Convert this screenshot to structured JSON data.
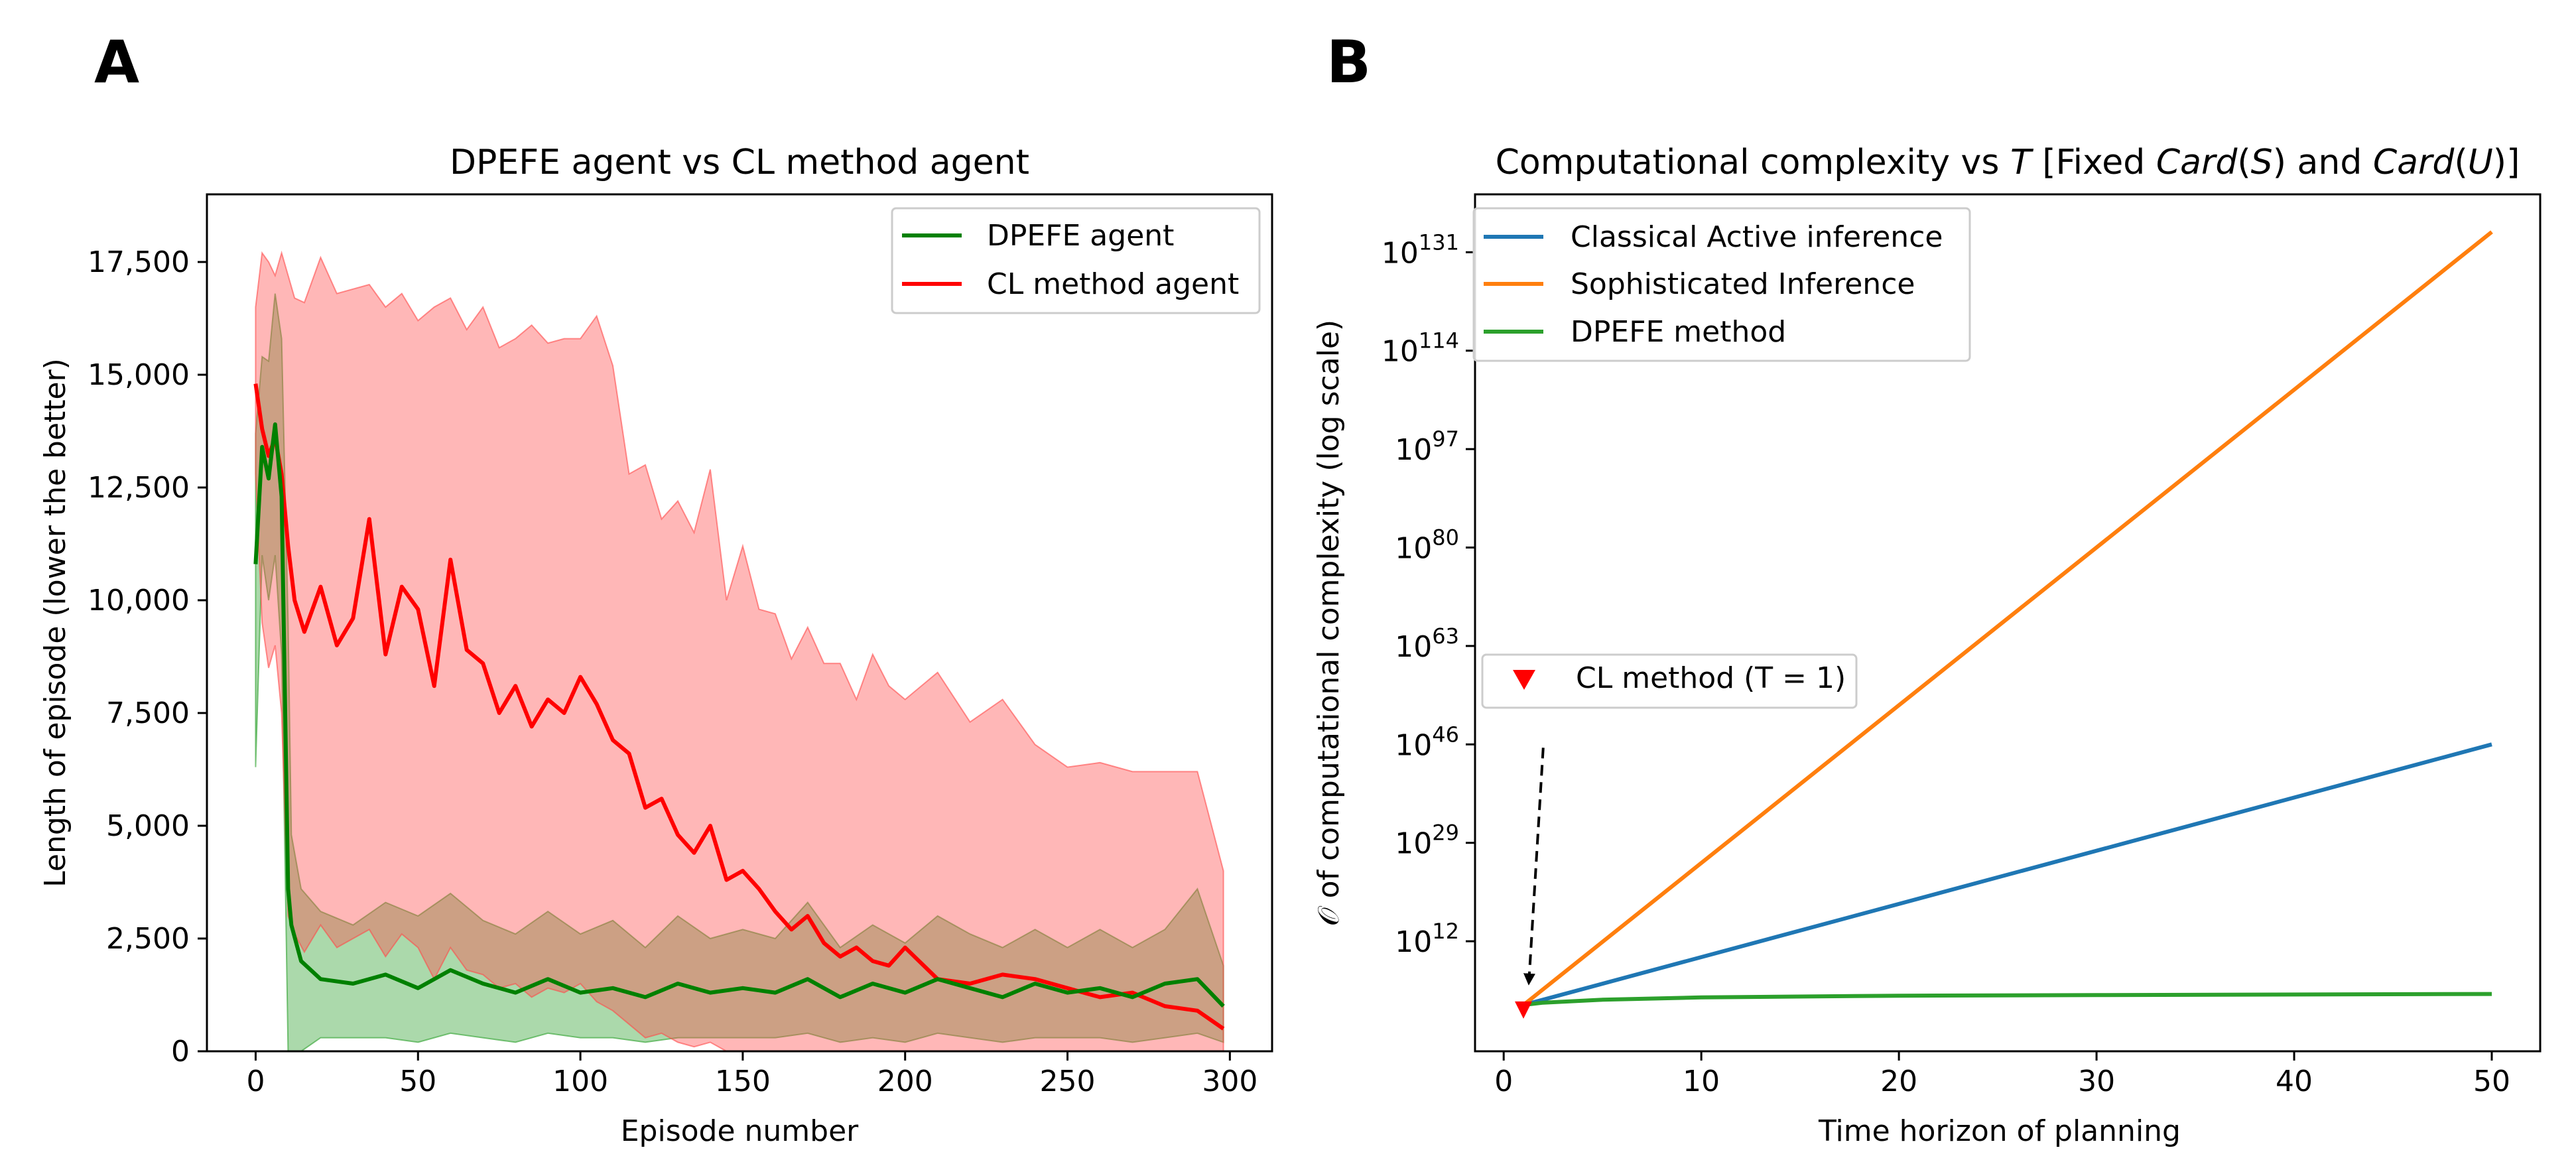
{
  "panel_labels": {
    "a": "A",
    "b": "B"
  },
  "chart_data": [
    {
      "type": "line",
      "panel": "A",
      "title": "DPEFE agent vs CL method agent",
      "xlabel": "Episode number",
      "ylabel": "Length of episode (lower the better)",
      "xlim": [
        -15,
        313
      ],
      "ylim": [
        0,
        19000
      ],
      "xticks": [
        0,
        50,
        100,
        150,
        200,
        250,
        300
      ],
      "xtick_labels": [
        "0",
        "50",
        "100",
        "150",
        "200",
        "250",
        "300"
      ],
      "yticks": [
        0,
        2500,
        5000,
        7500,
        10000,
        12500,
        15000,
        17500
      ],
      "ytick_labels": [
        "0",
        "2,500",
        "5,000",
        "7,500",
        "10,000",
        "12,500",
        "15,000",
        "17,500"
      ],
      "legend_position": "upper right",
      "series": [
        {
          "name": "DPEFE agent",
          "color": "#008000",
          "band_color": "#2ca02c",
          "x": [
            0,
            2,
            4,
            6,
            8,
            10,
            11,
            14,
            20,
            30,
            40,
            50,
            60,
            70,
            80,
            90,
            100,
            110,
            120,
            130,
            140,
            150,
            160,
            170,
            180,
            190,
            200,
            210,
            220,
            230,
            240,
            250,
            260,
            270,
            280,
            290,
            298
          ],
          "values": [
            10800,
            13400,
            12700,
            13900,
            12300,
            3600,
            2800,
            2000,
            1600,
            1500,
            1700,
            1400,
            1800,
            1500,
            1300,
            1600,
            1300,
            1400,
            1200,
            1500,
            1300,
            1400,
            1300,
            1600,
            1200,
            1500,
            1300,
            1600,
            1400,
            1200,
            1500,
            1300,
            1400,
            1200,
            1500,
            1600,
            1000
          ],
          "upper": [
            13700,
            15400,
            15300,
            16800,
            15800,
            9500,
            4800,
            3600,
            3100,
            2800,
            3300,
            3000,
            3500,
            2900,
            2600,
            3100,
            2600,
            2900,
            2300,
            3000,
            2500,
            2700,
            2500,
            3300,
            2300,
            2800,
            2400,
            3000,
            2600,
            2300,
            2700,
            2300,
            2700,
            2300,
            2700,
            3600,
            1900
          ],
          "lower": [
            6300,
            11000,
            10000,
            11000,
            8800,
            0,
            0,
            0,
            300,
            300,
            300,
            200,
            400,
            300,
            200,
            400,
            300,
            300,
            200,
            300,
            300,
            300,
            300,
            400,
            200,
            300,
            200,
            400,
            300,
            200,
            300,
            300,
            300,
            200,
            300,
            400,
            200
          ]
        },
        {
          "name": "CL method agent",
          "color": "#ff0000",
          "band_color": "#ff4a4a",
          "x": [
            0,
            2,
            4,
            6,
            8,
            10,
            12,
            15,
            20,
            25,
            30,
            35,
            40,
            45,
            50,
            55,
            60,
            65,
            70,
            75,
            80,
            85,
            90,
            95,
            100,
            105,
            110,
            115,
            120,
            125,
            130,
            135,
            140,
            145,
            150,
            155,
            160,
            165,
            170,
            175,
            180,
            185,
            190,
            195,
            200,
            210,
            220,
            230,
            240,
            250,
            260,
            270,
            280,
            290,
            298
          ],
          "values": [
            14800,
            13800,
            13200,
            13600,
            12800,
            11200,
            10000,
            9300,
            10300,
            9000,
            9600,
            11800,
            8800,
            10300,
            9800,
            8100,
            10900,
            8900,
            8600,
            7500,
            8100,
            7200,
            7800,
            7500,
            8300,
            7700,
            6900,
            6600,
            5400,
            5600,
            4800,
            4400,
            5000,
            3800,
            4000,
            3600,
            3100,
            2700,
            3000,
            2400,
            2100,
            2300,
            2000,
            1900,
            2300,
            1600,
            1500,
            1700,
            1600,
            1400,
            1200,
            1300,
            1000,
            900,
            500
          ],
          "upper": [
            16500,
            17700,
            17500,
            17200,
            17700,
            17200,
            16700,
            16600,
            17600,
            16800,
            16900,
            17000,
            16500,
            16800,
            16200,
            16500,
            16700,
            16000,
            16500,
            15600,
            15800,
            16100,
            15700,
            15800,
            15800,
            16300,
            15200,
            12800,
            13000,
            11800,
            12200,
            11500,
            12900,
            10000,
            11200,
            9800,
            9700,
            8700,
            9400,
            8600,
            8600,
            7800,
            8800,
            8100,
            7800,
            8400,
            7300,
            7800,
            6800,
            6300,
            6400,
            6200,
            6200,
            6200,
            4000
          ],
          "lower": [
            12800,
            9500,
            8500,
            9000,
            7500,
            3000,
            2600,
            2200,
            2800,
            2300,
            2500,
            2700,
            2100,
            2600,
            2300,
            1600,
            2300,
            1800,
            1700,
            1400,
            1500,
            1200,
            1400,
            1300,
            1500,
            1100,
            900,
            600,
            300,
            400,
            200,
            100,
            200,
            0,
            0,
            0,
            0,
            0,
            0,
            0,
            0,
            0,
            0,
            0,
            0,
            0,
            0,
            0,
            0,
            0,
            0,
            0,
            0,
            0,
            0
          ]
        }
      ]
    },
    {
      "type": "line",
      "panel": "B",
      "title": "Computational complexity vs T [Fixed Card(S) and Card(U)]",
      "title_parts": {
        "a": "Computational complexity vs ",
        "t": "T",
        "b": " [Fixed ",
        "cs": "Card",
        "c": "(",
        "s": "S",
        "d": ") and ",
        "cu": "Card",
        "e": "(",
        "u": "U",
        "f": ")]"
      },
      "xlabel": "Time horizon of planning",
      "ylabel": "𝒪 of computational complexity (log scale)",
      "y_scale": "log10",
      "xlim": [
        -1.45,
        52.45
      ],
      "ylim_log10": [
        -7,
        141
      ],
      "xticks": [
        0,
        10,
        20,
        30,
        40,
        50
      ],
      "xtick_labels": [
        "0",
        "10",
        "20",
        "30",
        "40",
        "50"
      ],
      "ytick_base": "10",
      "ytick_exponents": [
        12,
        29,
        46,
        63,
        80,
        97,
        114,
        131
      ],
      "ytick_exponent_labels": [
        "12",
        "29",
        "46",
        "63",
        "80",
        "97",
        "114",
        "131"
      ],
      "legend_position": "upper left",
      "series": [
        {
          "name": "Classical Active inference",
          "color": "#1f77b4",
          "x": [
            1,
            50
          ],
          "log10_values": [
            1,
            46
          ]
        },
        {
          "name": "Sophisticated Inference",
          "color": "#ff7f0e",
          "x": [
            1,
            50
          ],
          "log10_values": [
            1,
            134.5
          ]
        },
        {
          "name": "DPEFE method",
          "color": "#2ca02c",
          "x": [
            1,
            2,
            5,
            10,
            20,
            30,
            50
          ],
          "log10_values": [
            1,
            1.4,
            1.9,
            2.3,
            2.6,
            2.7,
            2.9
          ]
        }
      ],
      "annotation": {
        "label": "CL method (T = 1)",
        "marker": "triangle-down",
        "marker_color": "#ff0000",
        "point": {
          "x": 1,
          "log10_value": 0
        },
        "arrow_start": {
          "x": 2,
          "log10_value": 50
        }
      }
    }
  ]
}
